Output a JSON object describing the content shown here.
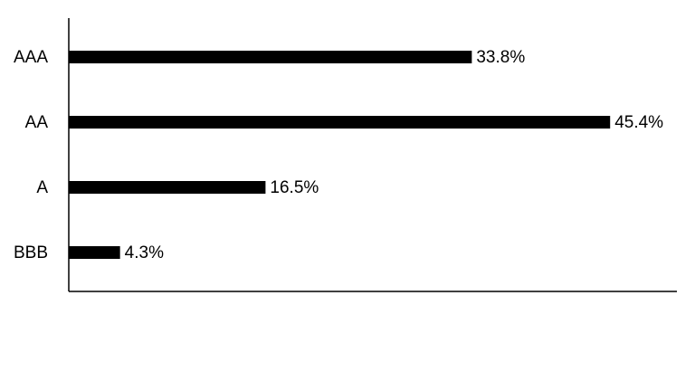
{
  "chart_data": {
    "type": "hbar",
    "categories": [
      "AAA",
      "AA",
      "A",
      "BBB"
    ],
    "values": [
      33.8,
      45.4,
      16.5,
      4.3
    ],
    "value_labels": [
      "33.8%",
      "45.4%",
      "16.5%",
      "4.3%"
    ],
    "color": "#000000",
    "xlim": [
      0,
      51
    ]
  }
}
